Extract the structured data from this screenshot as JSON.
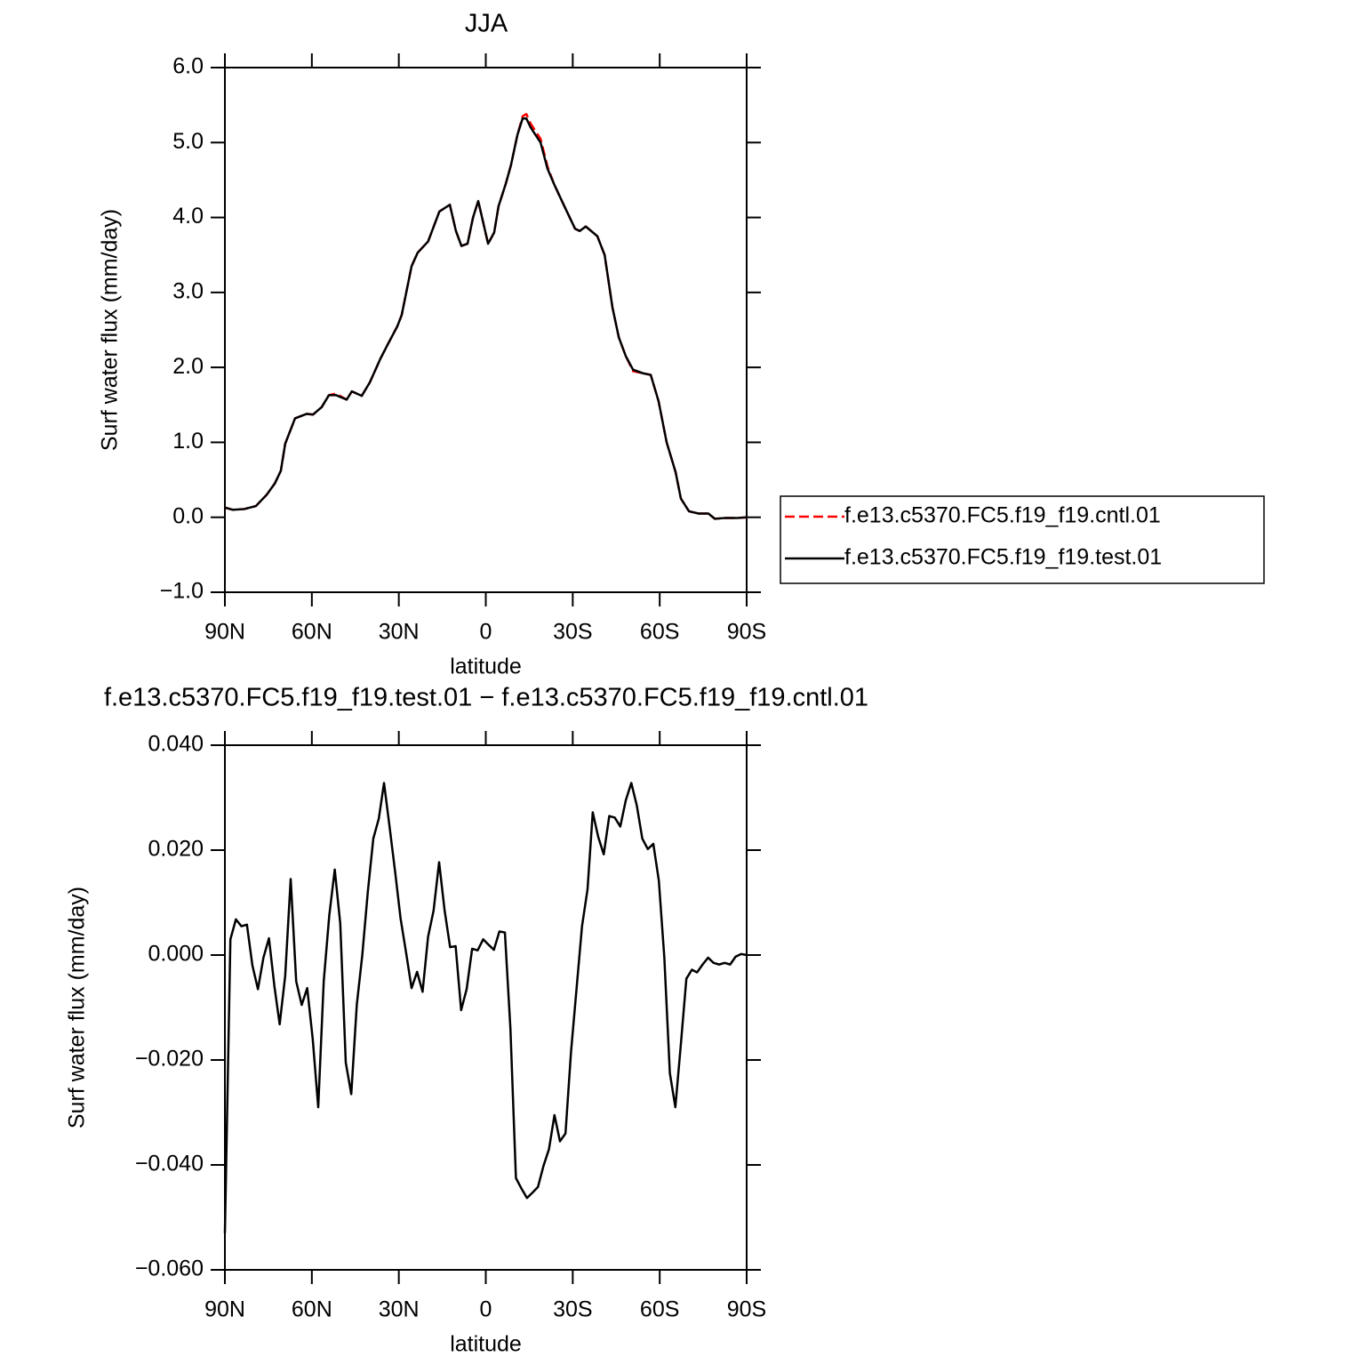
{
  "chart_data": [
    {
      "type": "line",
      "title": "JJA",
      "x_label": "latitude",
      "y_label": "Surf water flux (mm/day)",
      "x": [
        90,
        87.2,
        83.3,
        79.3,
        75.6,
        72.8,
        70.7,
        69.2,
        65.8,
        61.8,
        59.6,
        56.6,
        54.1,
        51.7,
        48.0,
        46.2,
        42.8,
        40.0,
        36.3,
        33.9,
        30.5,
        29.0,
        25.6,
        23.5,
        19.9,
        16.0,
        12.4,
        10.3,
        8.4,
        6.3,
        4.4,
        2.6,
        -0.8,
        -2.9,
        -4.4,
        -6.9,
        -8.7,
        -10.9,
        -12.7,
        -14.0,
        -15.5,
        -18.9,
        -21.3,
        -23.5,
        -26.5,
        -30.8,
        -32.4,
        -34.5,
        -38.5,
        -41.0,
        -43.7,
        -45.9,
        -48.3,
        -50.8,
        -54.4,
        -56.9,
        -59.6,
        -62.4,
        -65.5,
        -67.3,
        -70.1,
        -73.4,
        -76.8,
        -79.0,
        -82.3,
        -86.6,
        -90
      ],
      "series": [
        {
          "name": "f.e13.c5370.FC5.f19_f19.cntl.01",
          "color": "#ff0000",
          "line_style": "dashed",
          "values": [
            0.13,
            0.1,
            0.11,
            0.15,
            0.3,
            0.45,
            0.62,
            0.98,
            1.32,
            1.38,
            1.37,
            1.47,
            1.63,
            1.65,
            1.57,
            1.68,
            1.62,
            1.8,
            2.12,
            2.3,
            2.55,
            2.7,
            3.35,
            3.53,
            3.68,
            4.08,
            4.17,
            3.82,
            3.62,
            3.65,
            4.0,
            4.22,
            3.65,
            3.8,
            4.15,
            4.45,
            4.7,
            5.1,
            5.35,
            5.38,
            5.25,
            5.05,
            4.68,
            4.45,
            4.2,
            3.85,
            3.82,
            3.88,
            3.75,
            3.5,
            2.8,
            2.4,
            2.15,
            1.95,
            1.92,
            1.9,
            1.55,
            1.0,
            0.6,
            0.25,
            0.08,
            0.05,
            0.05,
            -0.02,
            -0.01,
            -0.01,
            0
          ]
        },
        {
          "name": "f.e13.c5370.FC5.f19_f19.test.01",
          "color": "#000000",
          "line_style": "solid",
          "values": [
            0.13,
            0.1,
            0.11,
            0.15,
            0.3,
            0.45,
            0.62,
            0.98,
            1.32,
            1.38,
            1.37,
            1.47,
            1.63,
            1.63,
            1.57,
            1.68,
            1.62,
            1.8,
            2.12,
            2.3,
            2.55,
            2.7,
            3.35,
            3.53,
            3.68,
            4.08,
            4.17,
            3.82,
            3.62,
            3.65,
            4.0,
            4.22,
            3.65,
            3.8,
            4.15,
            4.45,
            4.7,
            5.1,
            5.32,
            5.32,
            5.2,
            5.0,
            4.65,
            4.45,
            4.2,
            3.85,
            3.82,
            3.88,
            3.75,
            3.5,
            2.8,
            2.4,
            2.15,
            1.97,
            1.92,
            1.9,
            1.55,
            1.0,
            0.6,
            0.25,
            0.08,
            0.05,
            0.05,
            -0.02,
            -0.01,
            -0.01,
            0
          ]
        }
      ],
      "xlim": [
        90,
        -90
      ],
      "xticks": [
        {
          "value": 90,
          "label": "90N"
        },
        {
          "value": 60,
          "label": "60N"
        },
        {
          "value": 30,
          "label": "30N"
        },
        0,
        {
          "value": -30,
          "label": "30S"
        },
        {
          "value": -60,
          "label": "60S"
        },
        {
          "value": -90,
          "label": "90S"
        }
      ],
      "ylim": [
        -1,
        6
      ],
      "yticks": [
        {
          "value": -1,
          "label": "−1.0"
        },
        {
          "value": 0,
          "label": "0.0"
        },
        {
          "value": 1,
          "label": "1.0"
        },
        {
          "value": 2,
          "label": "2.0"
        },
        {
          "value": 3,
          "label": "3.0"
        },
        {
          "value": 4,
          "label": "4.0"
        },
        {
          "value": 5,
          "label": "5.0"
        },
        {
          "value": 6,
          "label": "6.0"
        }
      ],
      "legend": "right"
    },
    {
      "type": "line",
      "title": "f.e13.c5370.FC5.f19_f19.test.01 − f.e13.c5370.FC5.f19_f19.cntl.01",
      "x_label": "latitude",
      "y_label": "Surf water flux (mm/day)",
      "x": [
        90.0,
        88.1,
        86.2,
        84.3,
        82.4,
        80.5,
        78.6,
        76.7,
        74.8,
        72.9,
        71.1,
        69.2,
        67.3,
        65.4,
        63.5,
        61.6,
        59.7,
        57.8,
        55.9,
        54.0,
        52.1,
        50.2,
        48.3,
        46.4,
        44.5,
        42.6,
        40.7,
        38.8,
        36.9,
        35.1,
        33.2,
        31.3,
        29.4,
        27.5,
        25.6,
        23.7,
        21.8,
        19.9,
        18.0,
        16.1,
        14.2,
        12.3,
        10.4,
        8.5,
        6.6,
        4.7,
        2.8,
        0.9,
        -0.9,
        -2.8,
        -4.7,
        -6.6,
        -8.5,
        -10.4,
        -12.3,
        -14.2,
        -16.1,
        -18.0,
        -19.9,
        -21.8,
        -23.7,
        -25.6,
        -27.5,
        -29.4,
        -31.3,
        -33.2,
        -35.1,
        -36.9,
        -38.8,
        -40.7,
        -42.6,
        -44.5,
        -46.4,
        -48.3,
        -50.2,
        -52.1,
        -54.0,
        -55.9,
        -57.8,
        -59.7,
        -61.6,
        -63.5,
        -65.4,
        -67.3,
        -69.2,
        -71.1,
        -72.9,
        -74.8,
        -76.7,
        -78.6,
        -80.5,
        -82.4,
        -84.3,
        -86.2,
        -88.1,
        -90.0
      ],
      "values": [
        -0.053,
        0.003,
        0.0068,
        0.0055,
        0.0058,
        -0.002,
        -0.0065,
        -0.0005,
        0.0032,
        -0.006,
        -0.0132,
        -0.004,
        0.0145,
        -0.005,
        -0.0095,
        -0.0063,
        -0.016,
        -0.029,
        -0.005,
        0.0075,
        0.0163,
        0.006,
        -0.0205,
        -0.0265,
        -0.0095,
        0.0,
        0.012,
        0.0222,
        0.026,
        0.0328,
        0.0245,
        0.016,
        0.007,
        0.0005,
        -0.0063,
        -0.0032,
        -0.007,
        0.0035,
        0.0085,
        0.0177,
        0.0085,
        0.0015,
        0.0017,
        -0.0105,
        -0.0065,
        0.0012,
        0.0009,
        0.003,
        0.002,
        0.001,
        0.0045,
        0.0043,
        -0.014,
        -0.0425,
        -0.0445,
        -0.0463,
        -0.0453,
        -0.0442,
        -0.0402,
        -0.037,
        -0.0305,
        -0.0355,
        -0.034,
        -0.0185,
        -0.0065,
        0.0055,
        0.0125,
        0.0272,
        0.0225,
        0.0192,
        0.0265,
        0.0262,
        0.0245,
        0.0295,
        0.0328,
        0.0285,
        0.0222,
        0.0202,
        0.0212,
        0.0142,
        -0.0005,
        -0.0225,
        -0.029,
        -0.017,
        -0.0045,
        -0.0028,
        -0.0033,
        -0.0018,
        -0.0005,
        -0.0015,
        -0.0018,
        -0.0015,
        -0.0018,
        -0.0003,
        0.0002,
        0.0
      ],
      "color": "#000000",
      "xlim": [
        90,
        -90
      ],
      "xticks": [
        {
          "value": 90,
          "label": "90N"
        },
        {
          "value": 60,
          "label": "60N"
        },
        {
          "value": 30,
          "label": "30N"
        },
        0,
        {
          "value": -30,
          "label": "30S"
        },
        {
          "value": -60,
          "label": "60S"
        },
        {
          "value": -90,
          "label": "90S"
        }
      ],
      "ylim": [
        -0.06,
        0.04
      ],
      "yticks": [
        {
          "value": -0.06,
          "label": "−0.060"
        },
        {
          "value": -0.04,
          "label": "−0.040"
        },
        {
          "value": -0.02,
          "label": "−0.020"
        },
        {
          "value": 0,
          "label": "0.000"
        },
        {
          "value": 0.02,
          "label": "0.020"
        },
        {
          "value": 0.04,
          "label": "0.040"
        }
      ]
    }
  ]
}
